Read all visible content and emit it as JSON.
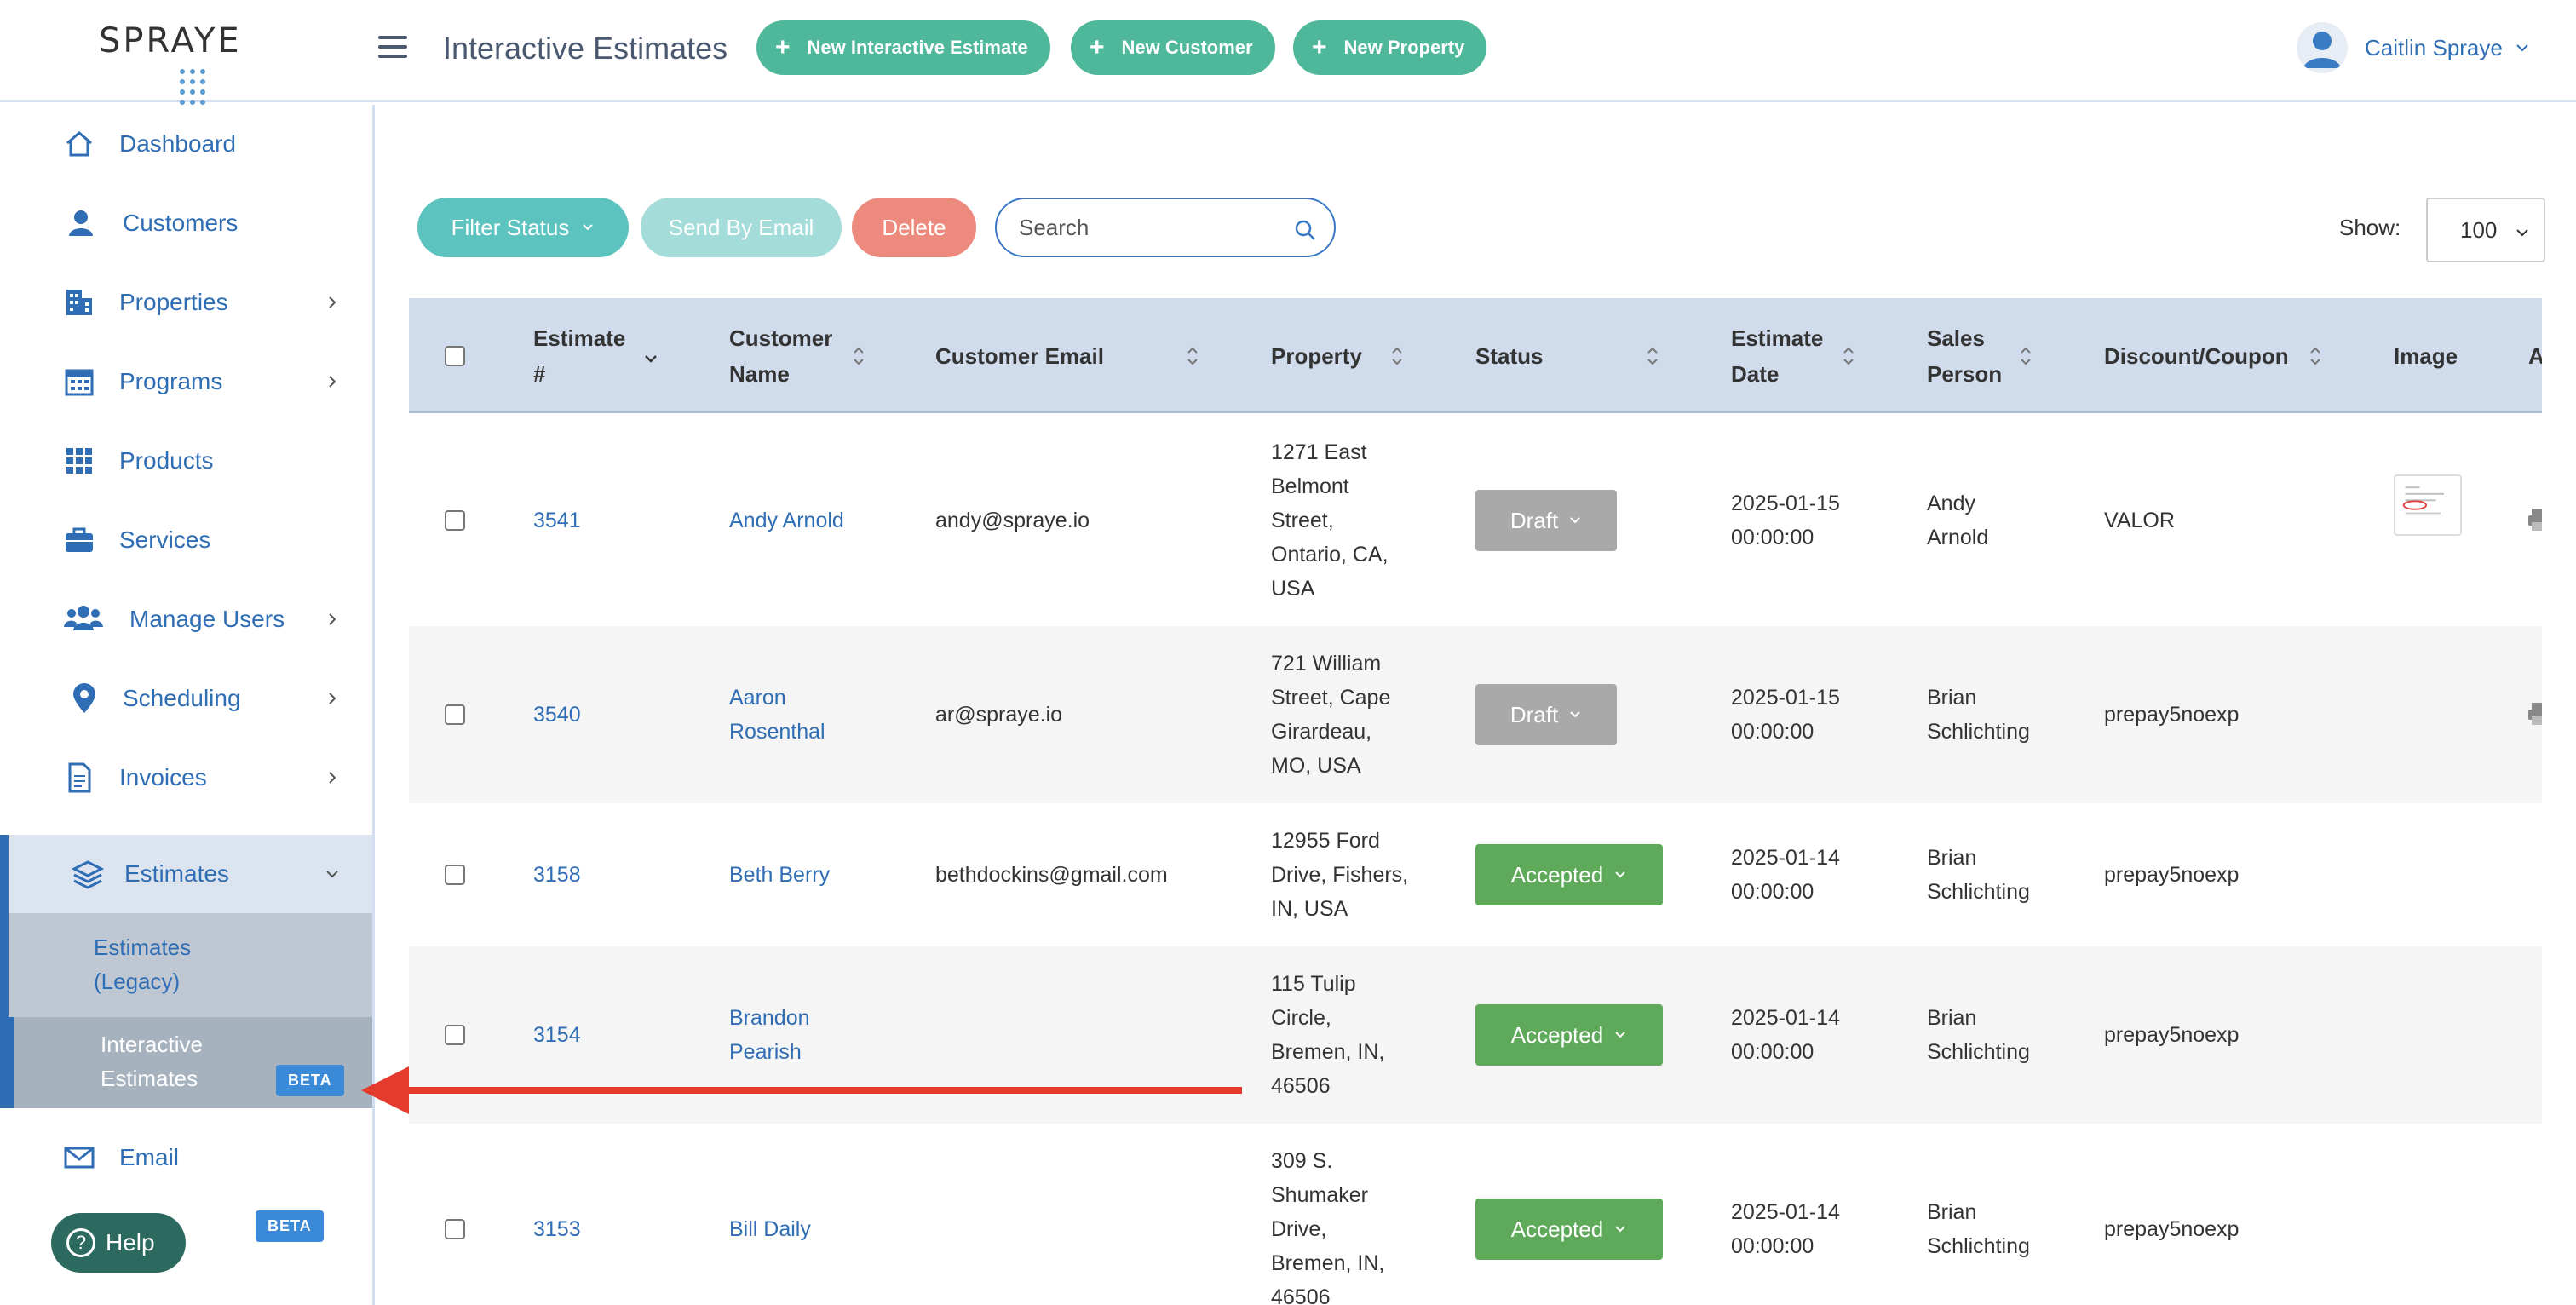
{
  "brand": {
    "logo_text": "SPRAYE"
  },
  "header": {
    "title": "Interactive Estimates",
    "buttons": [
      {
        "label": "New Interactive Estimate",
        "icon": "plus-icon"
      },
      {
        "label": "New Customer",
        "icon": "plus-icon"
      },
      {
        "label": "New Property",
        "icon": "plus-icon"
      }
    ],
    "user_name": "Caitlin Spraye"
  },
  "sidebar": {
    "items": [
      {
        "label": "Dashboard",
        "icon": "home-icon"
      },
      {
        "label": "Customers",
        "icon": "user-icon"
      },
      {
        "label": "Properties",
        "icon": "building-icon"
      },
      {
        "label": "Programs",
        "icon": "calendar-icon"
      },
      {
        "label": "Products",
        "icon": "grid-icon"
      },
      {
        "label": "Services",
        "icon": "briefcase-icon"
      },
      {
        "label": "Manage Users",
        "icon": "users-icon"
      },
      {
        "label": "Scheduling",
        "icon": "map-pin-icon"
      },
      {
        "label": "Invoices",
        "icon": "document-icon"
      },
      {
        "label": "Estimates",
        "icon": "layers-icon"
      },
      {
        "label": "Email",
        "icon": "mail-icon"
      }
    ],
    "estimates_sub": [
      {
        "label_line1": "Estimates",
        "label_line2": "(Legacy)"
      },
      {
        "label_line1": "Interactive",
        "label_line2": "Estimates",
        "badge": "BETA"
      }
    ],
    "email_badge": "BETA",
    "help_label": "Help"
  },
  "toolbar": {
    "filter_label": "Filter Status",
    "send_label": "Send By Email",
    "delete_label": "Delete",
    "search_placeholder": "Search",
    "show_label": "Show:",
    "show_value": "100"
  },
  "table": {
    "headers": {
      "estimate_l1": "Estimate",
      "estimate_l2": "#",
      "customer_l1": "Customer",
      "customer_l2": "Name",
      "email": "Customer Email",
      "property": "Property",
      "status": "Status",
      "date_l1": "Estimate",
      "date_l2": "Date",
      "sales_l1": "Sales",
      "sales_l2": "Person",
      "discount": "Discount/Coupon",
      "image": "Image",
      "actions_partial": "A"
    },
    "rows": [
      {
        "id": "3541",
        "customer": [
          "Andy Arnold"
        ],
        "email": "andy@spraye.io",
        "property": [
          "1271 East",
          "Belmont",
          "Street,",
          "Ontario, CA,",
          "USA"
        ],
        "status": "Draft",
        "date": [
          "2025-01-15",
          "00:00:00"
        ],
        "sales": [
          "Andy",
          "Arnold"
        ],
        "discount": "VALOR"
      },
      {
        "id": "3540",
        "customer": [
          "Aaron",
          "Rosenthal"
        ],
        "email": "ar@spraye.io",
        "property": [
          "721 William",
          "Street, Cape",
          "Girardeau,",
          "MO, USA"
        ],
        "status": "Draft",
        "date": [
          "2025-01-15",
          "00:00:00"
        ],
        "sales": [
          "Brian",
          "Schlichting"
        ],
        "discount": "prepay5noexp"
      },
      {
        "id": "3158",
        "customer": [
          "Beth Berry"
        ],
        "email": "bethdockins@gmail.com",
        "property": [
          "12955 Ford",
          "Drive, Fishers,",
          "IN, USA"
        ],
        "status": "Accepted",
        "date": [
          "2025-01-14",
          "00:00:00"
        ],
        "sales": [
          "Brian",
          "Schlichting"
        ],
        "discount": "prepay5noexp"
      },
      {
        "id": "3154",
        "customer": [
          "Brandon",
          "Pearish"
        ],
        "email": "",
        "property": [
          "115 Tulip",
          "Circle,",
          "Bremen, IN,",
          "46506"
        ],
        "status": "Accepted",
        "date": [
          "2025-01-14",
          "00:00:00"
        ],
        "sales": [
          "Brian",
          "Schlichting"
        ],
        "discount": "prepay5noexp"
      },
      {
        "id": "3153",
        "customer": [
          "Bill Daily"
        ],
        "email": "",
        "property": [
          "309 S.",
          "Shumaker",
          "Drive,",
          "Bremen, IN,",
          "46506"
        ],
        "status": "Accepted",
        "date": [
          "2025-01-14",
          "00:00:00"
        ],
        "sales": [
          "Brian",
          "Schlichting"
        ],
        "discount": "prepay5noexp"
      }
    ]
  },
  "colors": {
    "primary_green": "#50b89a",
    "teal": "#5cc3bf",
    "send_disabled": "#a3dcd9",
    "delete": "#ec8a7e",
    "draft": "#a9a9a9",
    "accepted": "#5faa5a",
    "link_blue": "#2f6db4",
    "header_bg": "#d0dcec",
    "arrow_red": "#e53b2c"
  }
}
